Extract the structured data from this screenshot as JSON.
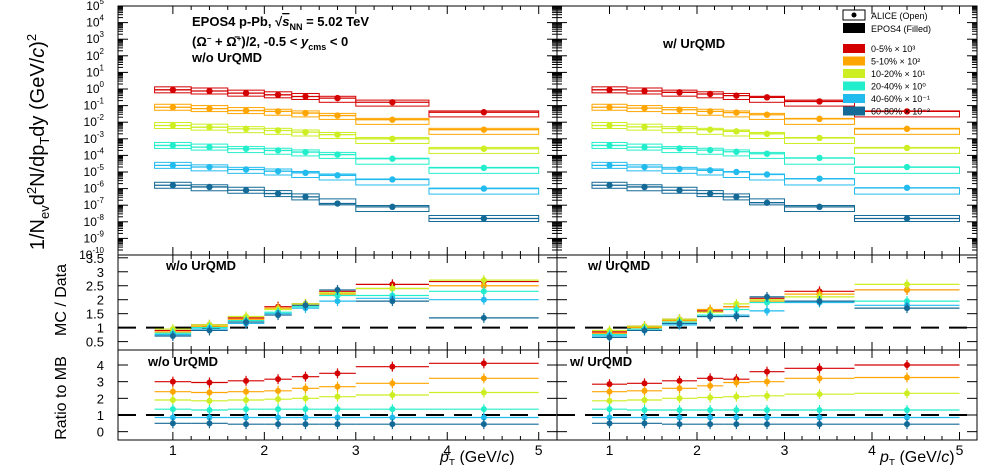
{
  "figure": {
    "header_left": "EPOS4 p-Pb, √s_NN = 5.02 TeV",
    "header_left_parts": {
      "lead": "EPOS4 p-Pb, ",
      "sqrt": "√",
      "s": "s",
      "sub": "NN",
      "tail": " = 5.02 TeV"
    },
    "species": "(Ω⁻ + Ω̄⁺)/2, -0.5 < y_cms < 0",
    "species_parts": {
      "lead": "(Ω",
      "sup1": "−",
      "mid": " + Ω̄",
      "sup2": "+",
      "tail1": ")/2, -0.5 < ",
      "y": "y",
      "sub": "cms",
      "tail2": " < 0"
    },
    "xlabel": "p_T (GeV/c)",
    "xlabel_parts": {
      "p": "p",
      "sub": "T",
      "unit": " (GeV/",
      "c": "c",
      "close": ")"
    },
    "top_ylabel": "1/N_ev d²N/dp_T dy (GeV/c)²",
    "top_ylabel_parts": {
      "a": "1/N",
      "b": "ev",
      "c": "d",
      "d": "2",
      "e": "N/dp",
      "f": "T",
      "g": "dy (GeV/",
      "h": "c",
      "i": ")",
      "j": "2"
    },
    "mid_ylabel": "MC / Data",
    "bot_ylabel": "Ratio to MB",
    "legend": {
      "marker_entries": [
        {
          "label": "ALICE  (Open)",
          "style": "open"
        },
        {
          "label": "EPOS4  (Filled)",
          "style": "filled"
        }
      ],
      "class_entries": [
        {
          "label": "0-5% × 10³",
          "color": "#d40000"
        },
        {
          "label": "5-10% × 10²",
          "color": "#ffa500"
        },
        {
          "label": "10-20% × 10¹",
          "color": "#ccee22"
        },
        {
          "label": "20-40% × 10⁰",
          "color": "#22eecc"
        },
        {
          "label": "40-60% × 10⁻¹",
          "color": "#22bbee"
        },
        {
          "label": "60-80% × 10⁻²",
          "color": "#146a96"
        }
      ]
    }
  },
  "panels": {
    "top_left_tag": "w/o UrQMD",
    "top_right_tag": "w/ UrQMD",
    "mid_left_tag": "w/o UrQMD",
    "mid_right_tag": "w/ UrQMD",
    "bot_left_tag": "w/o UrQMD",
    "bot_right_tag": "w/ UrQMD"
  },
  "axes": {
    "x_ticks": [
      "1",
      "2",
      "3",
      "4",
      "5"
    ],
    "x_range": [
      0.4,
      5.2
    ],
    "top_ylim_log10": [
      -10,
      5
    ],
    "top_tick_exps": [
      "5",
      "4",
      "3",
      "2",
      "1",
      "0",
      "-1",
      "-2",
      "-3",
      "-4",
      "-5",
      "-6",
      "-7",
      "-8",
      "-9",
      "-10"
    ],
    "top_tick_base": "10",
    "mid_ylim": [
      0.2,
      3.6
    ],
    "mid_ticks": [
      "3.5",
      "3",
      "2.5",
      "2",
      "1.5",
      "1",
      "0.5"
    ],
    "mid_reference_line": 1,
    "bot_ylim": [
      -0.5,
      4.9
    ],
    "bot_ticks": [
      "4",
      "3",
      "2",
      "1",
      "0"
    ],
    "bot_reference_line": 1
  },
  "chart_data": {
    "type": "scatter",
    "bins": [
      [
        0.8,
        1.2
      ],
      [
        1.2,
        1.6
      ],
      [
        1.6,
        2.0
      ],
      [
        2.0,
        2.3
      ],
      [
        2.3,
        2.6
      ],
      [
        2.6,
        3.0
      ],
      [
        3.0,
        3.8
      ],
      [
        3.8,
        5.0
      ]
    ],
    "x": [
      1.0,
      1.4,
      1.8,
      2.15,
      2.45,
      2.8,
      3.4,
      4.4
    ],
    "spectra_log10": {
      "series_colors": [
        "#d40000",
        "#ffa500",
        "#ccee22",
        "#22eecc",
        "#22bbee",
        "#146a96"
      ],
      "without_urqmd": {
        "data": [
          [
            -0.05,
            -0.12,
            -0.25,
            -0.35,
            -0.45,
            -0.62,
            -0.85,
            -1.5
          ],
          [
            -1.1,
            -1.18,
            -1.3,
            -1.4,
            -1.5,
            -1.65,
            -1.95,
            -2.55
          ],
          [
            -2.2,
            -2.3,
            -2.45,
            -2.55,
            -2.65,
            -2.8,
            -3.1,
            -3.7
          ],
          [
            -3.4,
            -3.5,
            -3.65,
            -3.75,
            -3.85,
            -4.0,
            -4.35,
            -4.9
          ],
          [
            -4.6,
            -4.75,
            -4.9,
            -5.0,
            -5.15,
            -5.3,
            -5.6,
            -6.15
          ],
          [
            -5.8,
            -5.95,
            -6.1,
            -6.3,
            -6.5,
            -6.8,
            -7.2,
            -7.8
          ]
        ],
        "model": [
          [
            -0.05,
            -0.12,
            -0.25,
            -0.35,
            -0.45,
            -0.55,
            -0.8,
            -1.4
          ],
          [
            -1.1,
            -1.18,
            -1.3,
            -1.35,
            -1.45,
            -1.6,
            -1.85,
            -2.45
          ],
          [
            -2.2,
            -2.3,
            -2.4,
            -2.5,
            -2.6,
            -2.75,
            -3.0,
            -3.6
          ],
          [
            -3.4,
            -3.5,
            -3.6,
            -3.7,
            -3.8,
            -3.95,
            -4.2,
            -4.75
          ],
          [
            -4.6,
            -4.7,
            -4.85,
            -4.95,
            -5.05,
            -5.2,
            -5.45,
            -6.0
          ],
          [
            -5.8,
            -5.9,
            -6.1,
            -6.3,
            -6.5,
            -6.9,
            -7.1,
            -7.8
          ]
        ]
      },
      "with_urqmd": {
        "data": [
          [
            -0.05,
            -0.12,
            -0.25,
            -0.35,
            -0.45,
            -0.62,
            -0.85,
            -1.5
          ],
          [
            -1.1,
            -1.18,
            -1.3,
            -1.4,
            -1.5,
            -1.65,
            -1.95,
            -2.55
          ],
          [
            -2.2,
            -2.3,
            -2.45,
            -2.55,
            -2.65,
            -2.8,
            -3.1,
            -3.7
          ],
          [
            -3.4,
            -3.5,
            -3.65,
            -3.75,
            -3.85,
            -4.0,
            -4.35,
            -4.9
          ],
          [
            -4.6,
            -4.75,
            -4.9,
            -5.0,
            -5.15,
            -5.3,
            -5.6,
            -6.15
          ],
          [
            -5.8,
            -5.95,
            -6.1,
            -6.3,
            -6.5,
            -6.8,
            -7.2,
            -7.8
          ]
        ],
        "model": [
          [
            -0.05,
            -0.12,
            -0.2,
            -0.3,
            -0.4,
            -0.5,
            -0.75,
            -1.35
          ],
          [
            -1.1,
            -1.15,
            -1.25,
            -1.35,
            -1.42,
            -1.55,
            -1.8,
            -2.4
          ],
          [
            -2.2,
            -2.28,
            -2.38,
            -2.45,
            -2.55,
            -2.7,
            -2.95,
            -3.55
          ],
          [
            -3.4,
            -3.5,
            -3.58,
            -3.68,
            -3.78,
            -3.9,
            -4.15,
            -4.7
          ],
          [
            -4.6,
            -4.7,
            -4.82,
            -4.9,
            -5.0,
            -5.15,
            -5.4,
            -5.95
          ],
          [
            -5.8,
            -5.9,
            -6.1,
            -6.3,
            -6.5,
            -6.85,
            -7.1,
            -7.8
          ]
        ]
      }
    },
    "mc_over_data": {
      "series_colors": [
        "#d40000",
        "#ffa500",
        "#ccee22",
        "#22eecc",
        "#22bbee",
        "#146a96"
      ],
      "without_urqmd": [
        [
          0.9,
          1.1,
          1.35,
          1.75,
          1.85,
          2.3,
          2.55,
          2.65
        ],
        [
          0.85,
          1.05,
          1.3,
          1.7,
          1.8,
          2.2,
          2.4,
          2.5
        ],
        [
          0.95,
          1.1,
          1.4,
          1.65,
          1.85,
          2.25,
          2.4,
          2.7
        ],
        [
          0.8,
          1.0,
          1.25,
          1.55,
          1.75,
          2.15,
          2.15,
          2.3
        ],
        [
          0.75,
          0.95,
          1.15,
          1.5,
          1.7,
          1.95,
          2.05,
          2.0
        ],
        [
          0.7,
          0.9,
          1.2,
          1.45,
          1.8,
          2.35,
          1.95,
          1.35
        ]
      ],
      "with_urqmd": [
        [
          0.85,
          1.05,
          1.3,
          1.6,
          1.75,
          2.05,
          2.3,
          2.35
        ],
        [
          0.8,
          1.0,
          1.25,
          1.65,
          1.75,
          1.95,
          2.2,
          2.35
        ],
        [
          0.9,
          1.05,
          1.3,
          1.55,
          1.85,
          2.0,
          2.1,
          2.55
        ],
        [
          0.75,
          0.95,
          1.2,
          1.45,
          1.65,
          1.9,
          1.95,
          1.95
        ],
        [
          0.7,
          0.9,
          1.1,
          1.4,
          1.45,
          1.6,
          1.9,
          1.8
        ],
        [
          0.65,
          0.9,
          1.15,
          1.4,
          1.4,
          2.1,
          1.95,
          1.7
        ]
      ]
    },
    "ratio_to_mb": {
      "series_colors": [
        "#d40000",
        "#ffa500",
        "#ccee22",
        "#22eecc",
        "#22bbee",
        "#146a96"
      ],
      "without_urqmd": [
        [
          3.0,
          2.95,
          3.05,
          3.15,
          3.3,
          3.5,
          3.9,
          4.1
        ],
        [
          2.4,
          2.35,
          2.4,
          2.45,
          2.6,
          2.7,
          2.9,
          3.2
        ],
        [
          1.9,
          1.85,
          1.9,
          1.95,
          2.0,
          2.1,
          2.2,
          2.35
        ],
        [
          1.35,
          1.3,
          1.35,
          1.35,
          1.35,
          1.35,
          1.35,
          1.35
        ],
        [
          0.85,
          0.85,
          0.85,
          0.85,
          0.85,
          0.85,
          0.85,
          0.85
        ],
        [
          0.5,
          0.5,
          0.45,
          0.45,
          0.45,
          0.45,
          0.45,
          0.45
        ]
      ],
      "with_urqmd": [
        [
          2.85,
          2.9,
          3.05,
          3.2,
          3.15,
          3.6,
          3.8,
          4.0
        ],
        [
          2.4,
          2.45,
          2.6,
          2.75,
          2.95,
          3.0,
          3.2,
          3.25
        ],
        [
          1.85,
          1.9,
          2.0,
          2.05,
          2.1,
          2.15,
          2.25,
          2.3
        ],
        [
          1.35,
          1.3,
          1.3,
          1.3,
          1.3,
          1.3,
          1.3,
          1.3
        ],
        [
          0.85,
          0.85,
          0.85,
          0.85,
          0.85,
          0.85,
          0.85,
          0.85
        ],
        [
          0.5,
          0.5,
          0.45,
          0.45,
          0.45,
          0.45,
          0.45,
          0.45
        ]
      ]
    }
  }
}
